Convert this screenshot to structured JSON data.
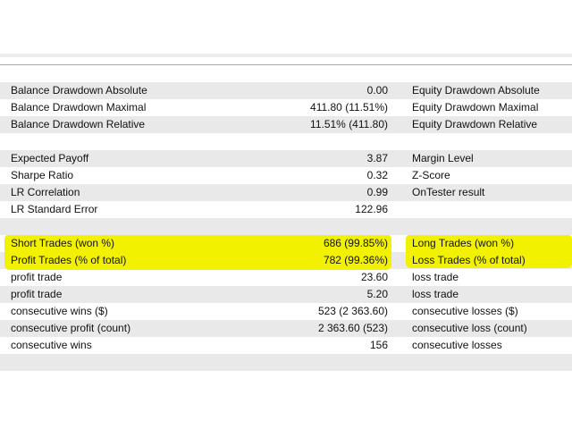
{
  "rows": [
    {
      "label": "Balance Drawdown Absolute",
      "value": "0.00",
      "right_label": "Equity Drawdown Absolute"
    },
    {
      "label": "Balance Drawdown Maximal",
      "value": "411.80 (11.51%)",
      "right_label": "Equity Drawdown Maximal"
    },
    {
      "label": "Balance Drawdown Relative",
      "value": "11.51% (411.80)",
      "right_label": "Equity Drawdown Relative"
    },
    {
      "label": "",
      "value": "",
      "right_label": ""
    },
    {
      "label": "Expected Payoff",
      "value": "3.87",
      "right_label": "Margin Level"
    },
    {
      "label": "Sharpe Ratio",
      "value": "0.32",
      "right_label": "Z-Score"
    },
    {
      "label": "LR Correlation",
      "value": "0.99",
      "right_label": "OnTester result"
    },
    {
      "label": "LR Standard Error",
      "value": "122.96",
      "right_label": ""
    },
    {
      "label": "",
      "value": "",
      "right_label": ""
    },
    {
      "label": "Short Trades (won %)",
      "value": "686 (99.85%)",
      "right_label": "Long Trades (won %)"
    },
    {
      "label": "Profit Trades (% of total)",
      "value": "782 (99.36%)",
      "right_label": "Loss Trades (% of total)"
    },
    {
      "label": "profit trade",
      "value": "23.60",
      "right_label": "loss trade"
    },
    {
      "label": "profit trade",
      "value": "5.20",
      "right_label": "loss trade"
    },
    {
      "label": "consecutive wins ($)",
      "value": "523 (2 363.60)",
      "right_label": "consecutive losses ($)"
    },
    {
      "label": "consecutive profit (count)",
      "value": "2 363.60 (523)",
      "right_label": "consecutive loss (count)"
    },
    {
      "label": "consecutive wins",
      "value": "156",
      "right_label": "consecutive losses"
    },
    {
      "label": "",
      "value": "",
      "right_label": ""
    }
  ],
  "highlight_color": "#f2f200"
}
